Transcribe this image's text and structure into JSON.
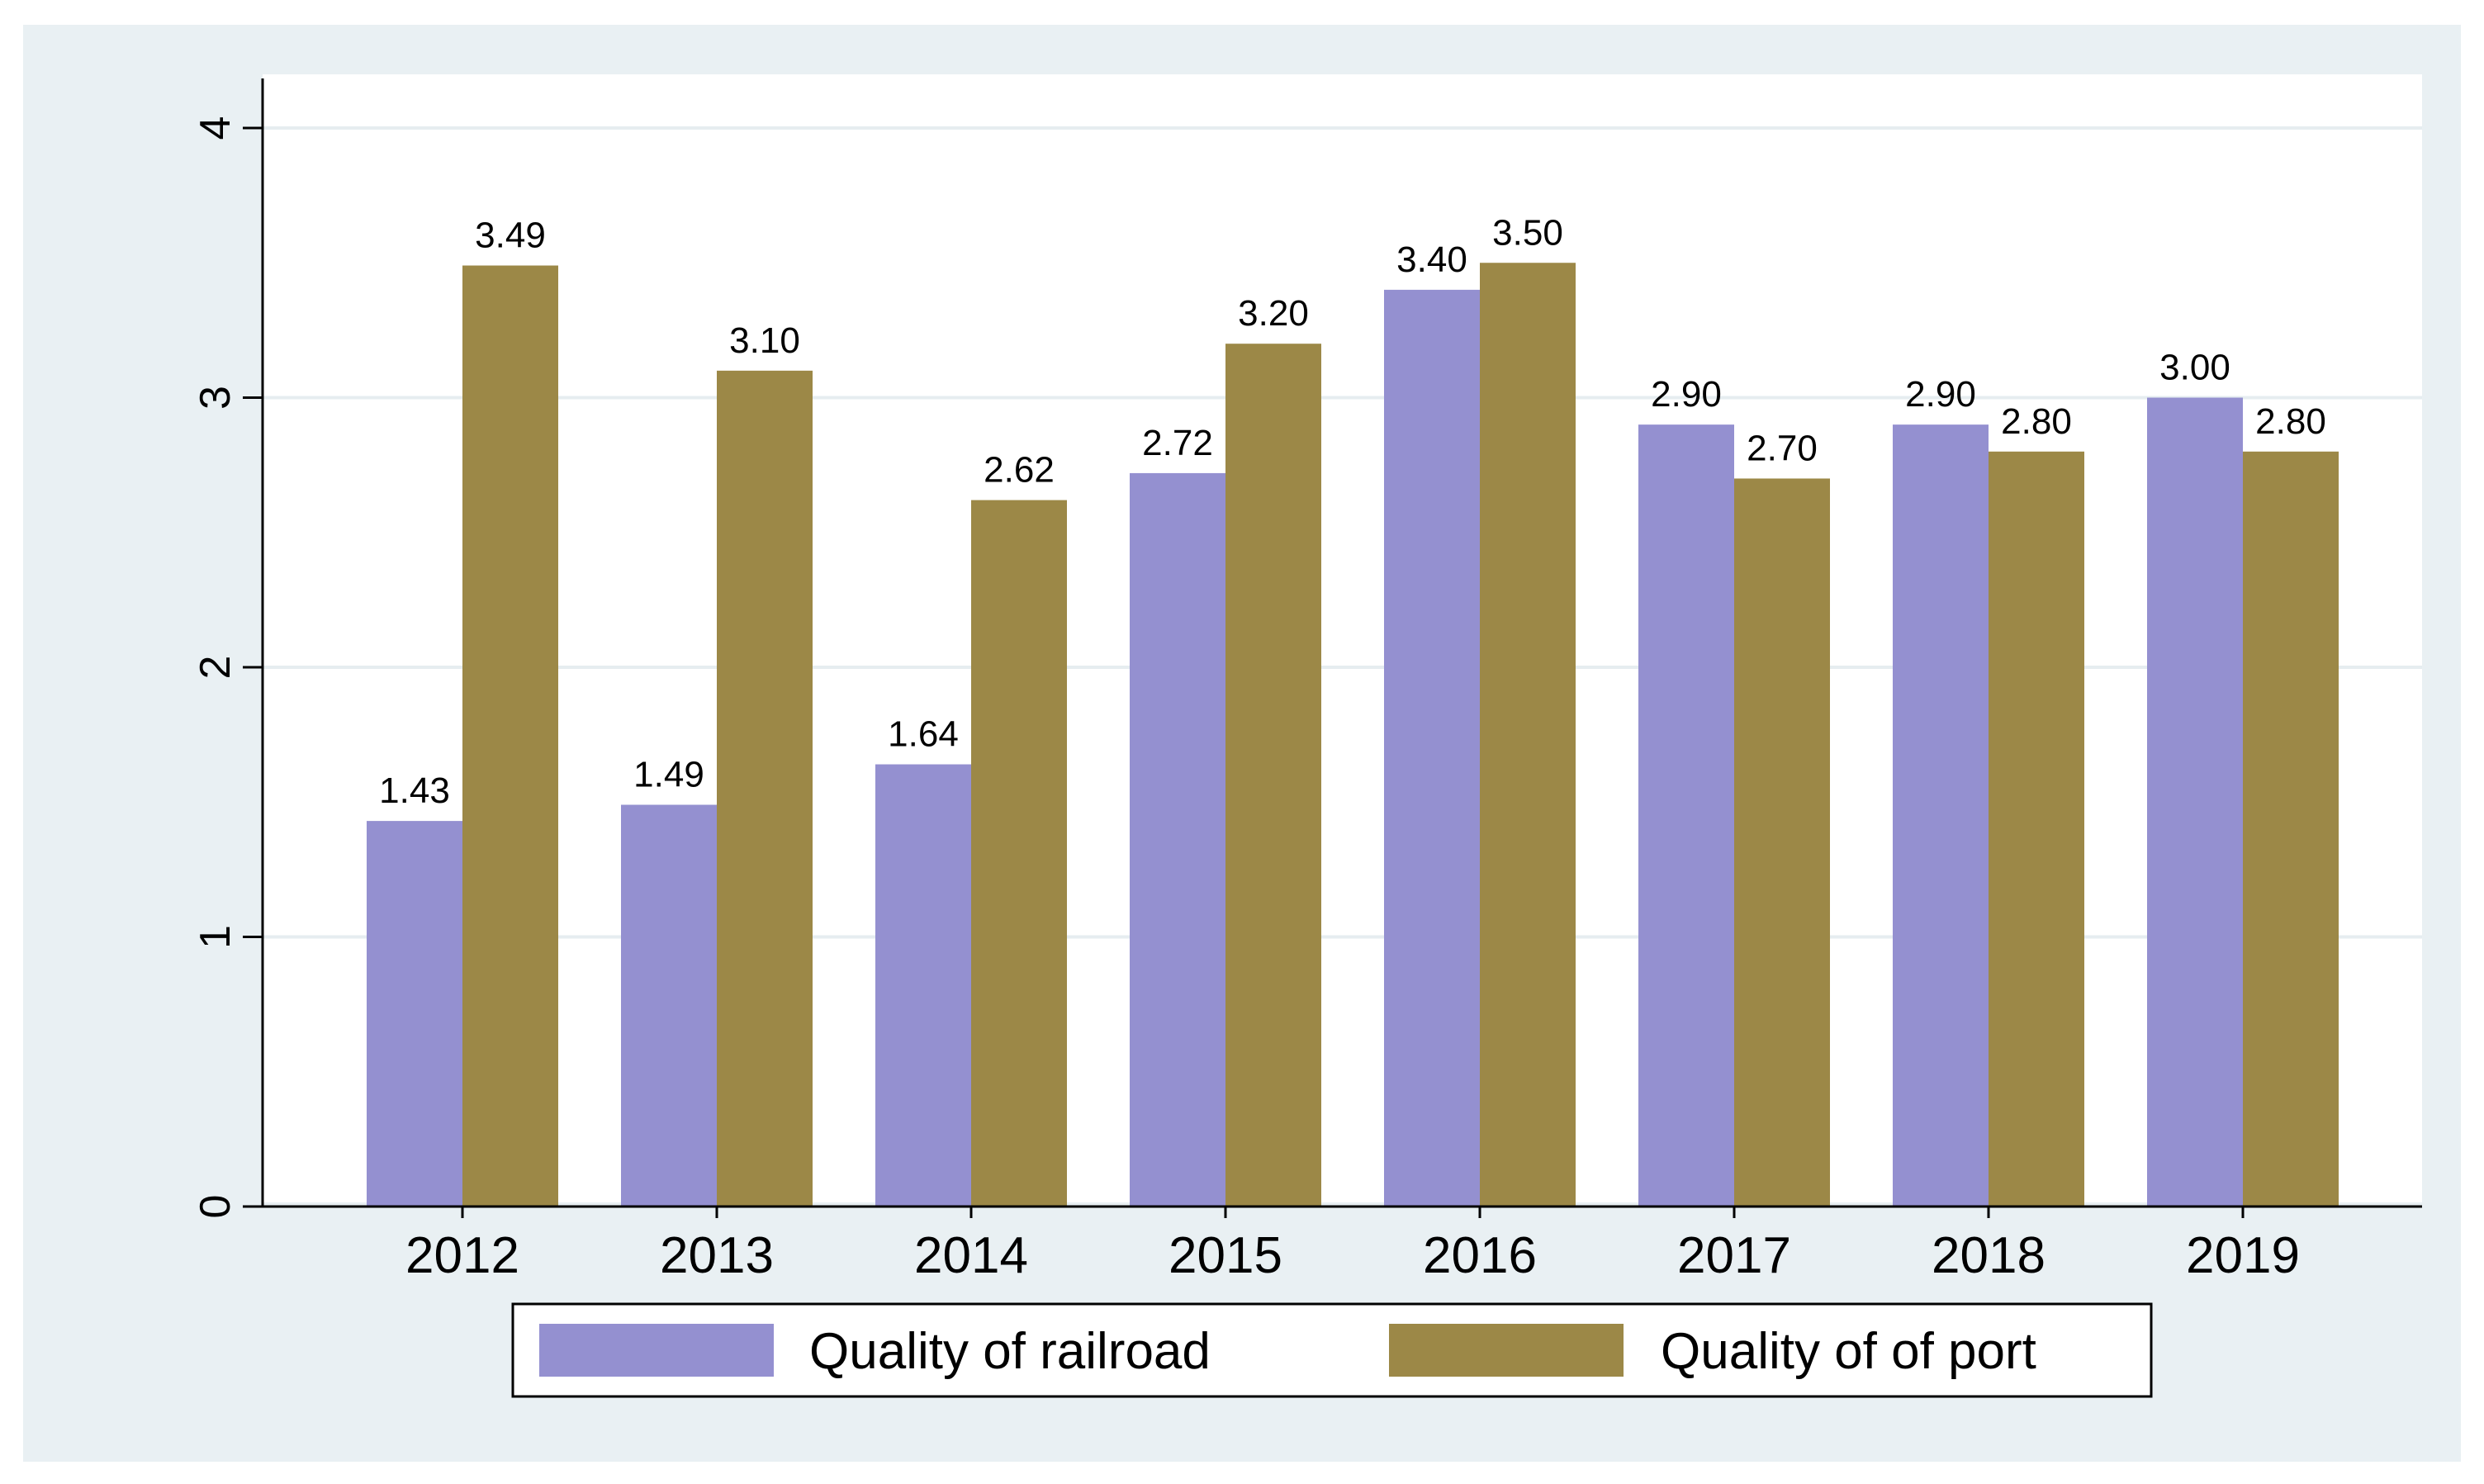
{
  "chart_data": {
    "type": "bar",
    "title": "",
    "xlabel": "",
    "ylabel": "",
    "categories": [
      "2012",
      "2013",
      "2014",
      "2015",
      "2016",
      "2017",
      "2018",
      "2019"
    ],
    "series": [
      {
        "name": "Quality of railroad",
        "color": "#9490d0",
        "values": [
          1.43,
          1.49,
          1.64,
          2.72,
          3.4,
          2.9,
          2.9,
          3.0
        ],
        "labels": [
          "1.43",
          "1.49",
          "1.64",
          "2.72",
          "3.40",
          "2.90",
          "2.90",
          "3.00"
        ]
      },
      {
        "name": "Quality of of port",
        "color": "#9c8847",
        "values": [
          3.49,
          3.1,
          2.62,
          3.2,
          3.5,
          2.7,
          2.8,
          2.8
        ],
        "labels": [
          "3.49",
          "3.10",
          "2.62",
          "3.20",
          "3.50",
          "2.70",
          "2.80",
          "2.80"
        ]
      }
    ],
    "ylim": [
      0,
      4
    ],
    "yticks": [
      "0",
      "1",
      "2",
      "3",
      "4"
    ],
    "grid": true,
    "legend": "bottom"
  }
}
